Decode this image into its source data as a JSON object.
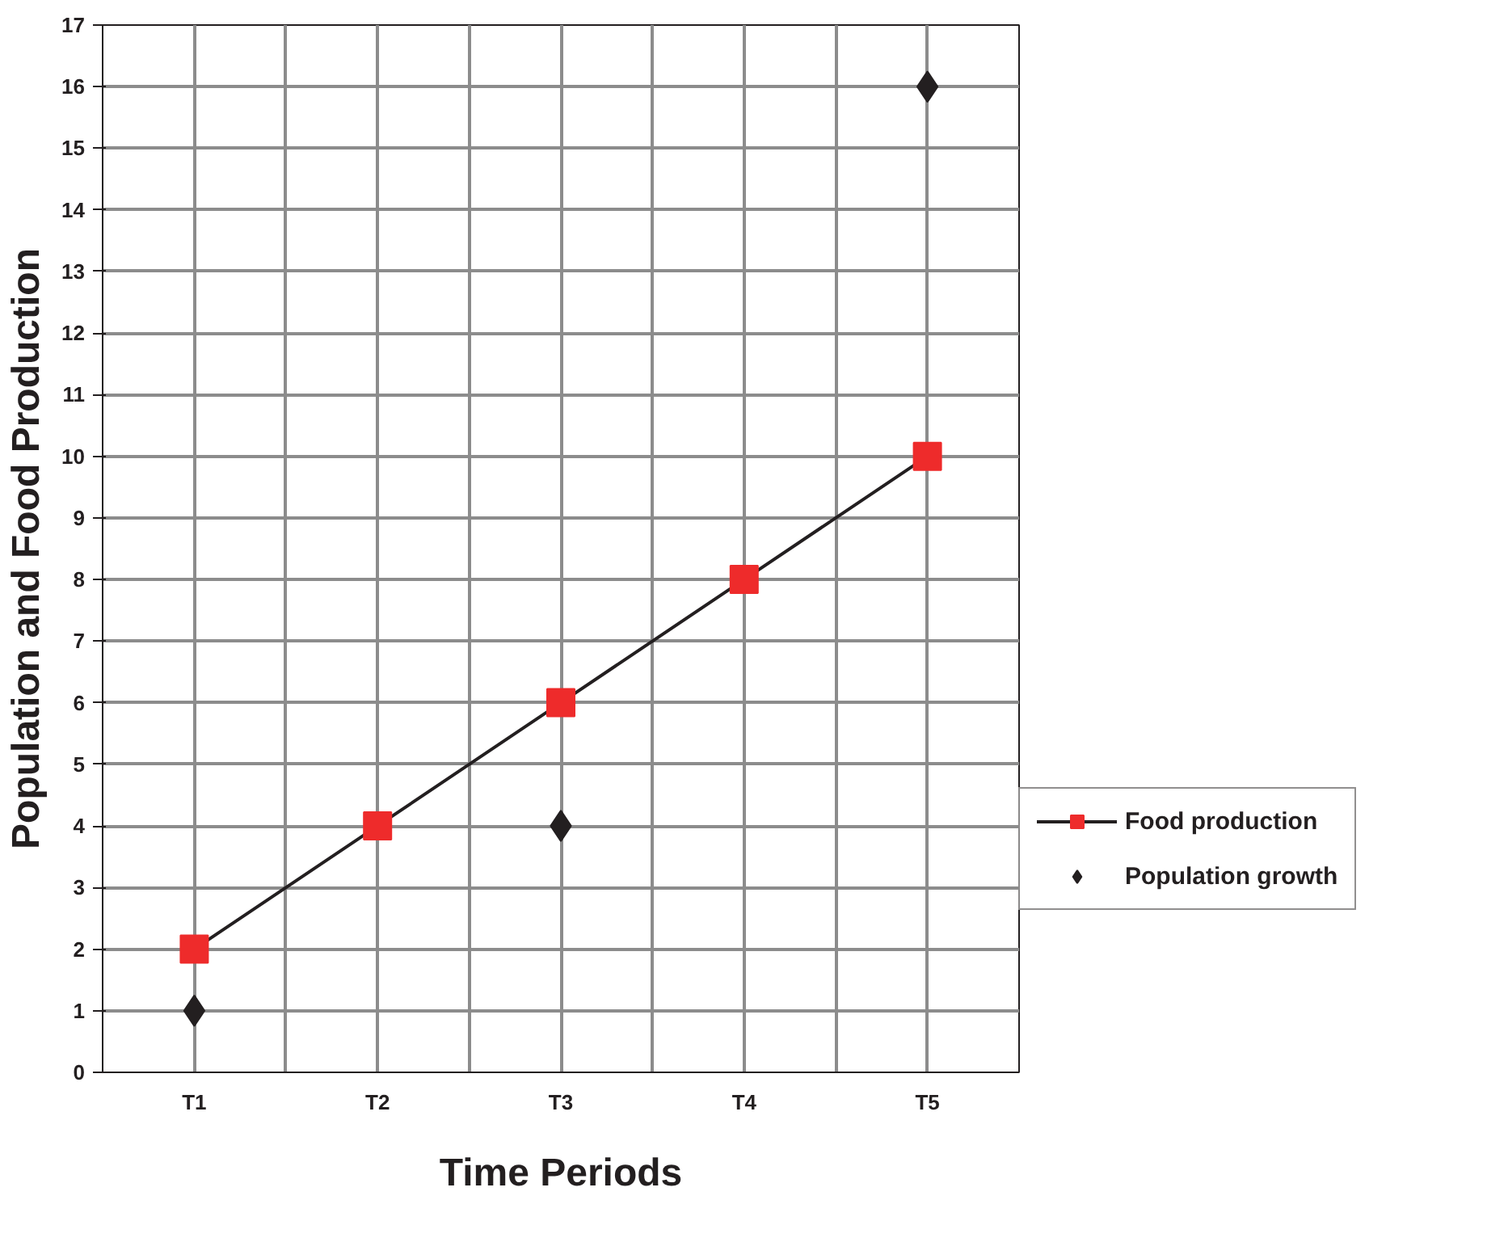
{
  "chart_data": {
    "type": "line",
    "xlabel": "Time Periods",
    "ylabel": "Population and Food Production",
    "categories": [
      "T1",
      "T2",
      "T3",
      "T4",
      "T5"
    ],
    "series": [
      {
        "name": "Food production",
        "color": "#ee2b2b",
        "values": [
          2,
          4,
          6,
          8,
          10
        ]
      },
      {
        "name": "Population growth",
        "type": "scatter",
        "color": "#231f20",
        "marker": "diamond",
        "values": [
          1,
          null,
          4,
          null,
          16
        ]
      }
    ],
    "ylim": [
      0,
      17
    ],
    "yticks": [
      0,
      1,
      2,
      3,
      4,
      5,
      6,
      7,
      8,
      9,
      10,
      11,
      12,
      13,
      14,
      15,
      16,
      17
    ],
    "grid": true,
    "legend": "right",
    "marker": "square",
    "line_style": "solid"
  }
}
